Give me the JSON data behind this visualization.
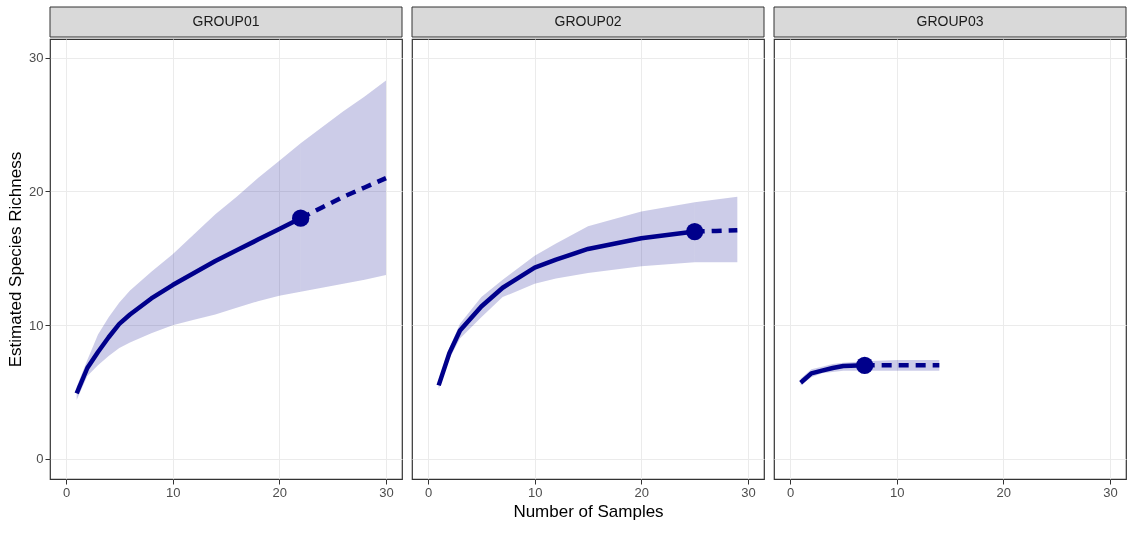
{
  "chart_data": [
    {
      "type": "line",
      "title": "GROUP01",
      "ylabel": "Estimated Species Richness",
      "xlim": [
        -1.5,
        31.5
      ],
      "ylim": [
        -1.5,
        31.4
      ],
      "xticks": [
        0,
        10,
        20,
        30
      ],
      "yticks": [
        0,
        10,
        20,
        30
      ],
      "grid": true,
      "series": [
        {
          "color": "#00008b",
          "line_style": "solid",
          "x": [
            1,
            2,
            3,
            4,
            5,
            6,
            8,
            10,
            12,
            14,
            16,
            18,
            20,
            22
          ],
          "values": [
            4.9,
            6.8,
            8.0,
            9.1,
            10.1,
            10.8,
            12.0,
            13.0,
            13.9,
            14.8,
            15.6,
            16.4,
            17.2,
            18.0
          ],
          "lower": [
            4.4,
            6.2,
            7.0,
            7.7,
            8.3,
            8.7,
            9.4,
            10.0,
            10.4,
            10.8,
            11.3,
            11.8,
            12.2,
            12.5
          ],
          "upper": [
            5.4,
            7.4,
            9.3,
            10.6,
            11.7,
            12.6,
            14.0,
            15.3,
            16.8,
            18.3,
            19.6,
            21.0,
            22.3,
            23.6
          ]
        },
        {
          "color": "#00008b",
          "line_style": "dashed",
          "x": [
            22,
            24,
            26,
            28,
            30
          ],
          "values": [
            18.0,
            18.8,
            19.6,
            20.3,
            21.0
          ],
          "lower": [
            12.5,
            12.8,
            13.1,
            13.4,
            13.75
          ],
          "upper": [
            23.6,
            24.8,
            26.0,
            27.1,
            28.3
          ]
        },
        {
          "type": "scatter",
          "marker": "circle",
          "color": "#00008b",
          "x": [
            22
          ],
          "values": [
            18.0
          ]
        }
      ]
    },
    {
      "type": "line",
      "title": "GROUP02",
      "xlabel": "Number of Samples",
      "xlim": [
        -1.5,
        31.5
      ],
      "ylim": [
        -1.5,
        31.4
      ],
      "xticks": [
        0,
        10,
        20,
        30
      ],
      "yticks": [
        0,
        10,
        20,
        30
      ],
      "grid": true,
      "tick_labels": "x",
      "series": [
        {
          "color": "#00008b",
          "line_style": "solid",
          "x": [
            1,
            2,
            3,
            5,
            7,
            10,
            12,
            15,
            20,
            25
          ],
          "values": [
            5.5,
            7.9,
            9.6,
            11.4,
            12.8,
            14.3,
            14.9,
            15.7,
            16.5,
            17.0
          ],
          "lower": [
            5.2,
            7.5,
            9.0,
            10.6,
            12.1,
            13.1,
            13.5,
            13.9,
            14.4,
            14.7
          ],
          "upper": [
            5.8,
            8.3,
            10.1,
            12.1,
            13.4,
            15.2,
            16.1,
            17.4,
            18.5,
            19.2
          ]
        },
        {
          "color": "#00008b",
          "line_style": "dashed",
          "x": [
            25,
            27,
            29
          ],
          "values": [
            17.0,
            17.05,
            17.1
          ],
          "lower": [
            14.7,
            14.7,
            14.7
          ],
          "upper": [
            19.2,
            19.4,
            19.6
          ]
        },
        {
          "type": "scatter",
          "marker": "circle",
          "color": "#00008b",
          "x": [
            25
          ],
          "values": [
            17.0
          ]
        }
      ]
    },
    {
      "type": "line",
      "title": "GROUP03",
      "xlim": [
        -1.5,
        31.5
      ],
      "ylim": [
        -1.5,
        31.4
      ],
      "xticks": [
        0,
        10,
        20,
        30
      ],
      "yticks": [
        0,
        10,
        20,
        30
      ],
      "grid": true,
      "tick_labels": "x",
      "series": [
        {
          "color": "#00008b",
          "line_style": "solid",
          "x": [
            1,
            2,
            3,
            4,
            5,
            7
          ],
          "values": [
            5.7,
            6.4,
            6.6,
            6.8,
            6.95,
            7.0
          ],
          "lower": [
            5.5,
            6.1,
            6.4,
            6.5,
            6.6,
            6.6
          ],
          "upper": [
            6.0,
            6.7,
            6.9,
            7.1,
            7.2,
            7.3
          ]
        },
        {
          "color": "#00008b",
          "line_style": "dashed",
          "x": [
            7,
            10,
            14
          ],
          "values": [
            7.0,
            7.0,
            7.0
          ],
          "lower": [
            6.6,
            6.6,
            6.6
          ],
          "upper": [
            7.3,
            7.4,
            7.4
          ]
        },
        {
          "type": "scatter",
          "marker": "circle",
          "color": "#00008b",
          "x": [
            7
          ],
          "values": [
            7.0
          ]
        }
      ]
    }
  ]
}
